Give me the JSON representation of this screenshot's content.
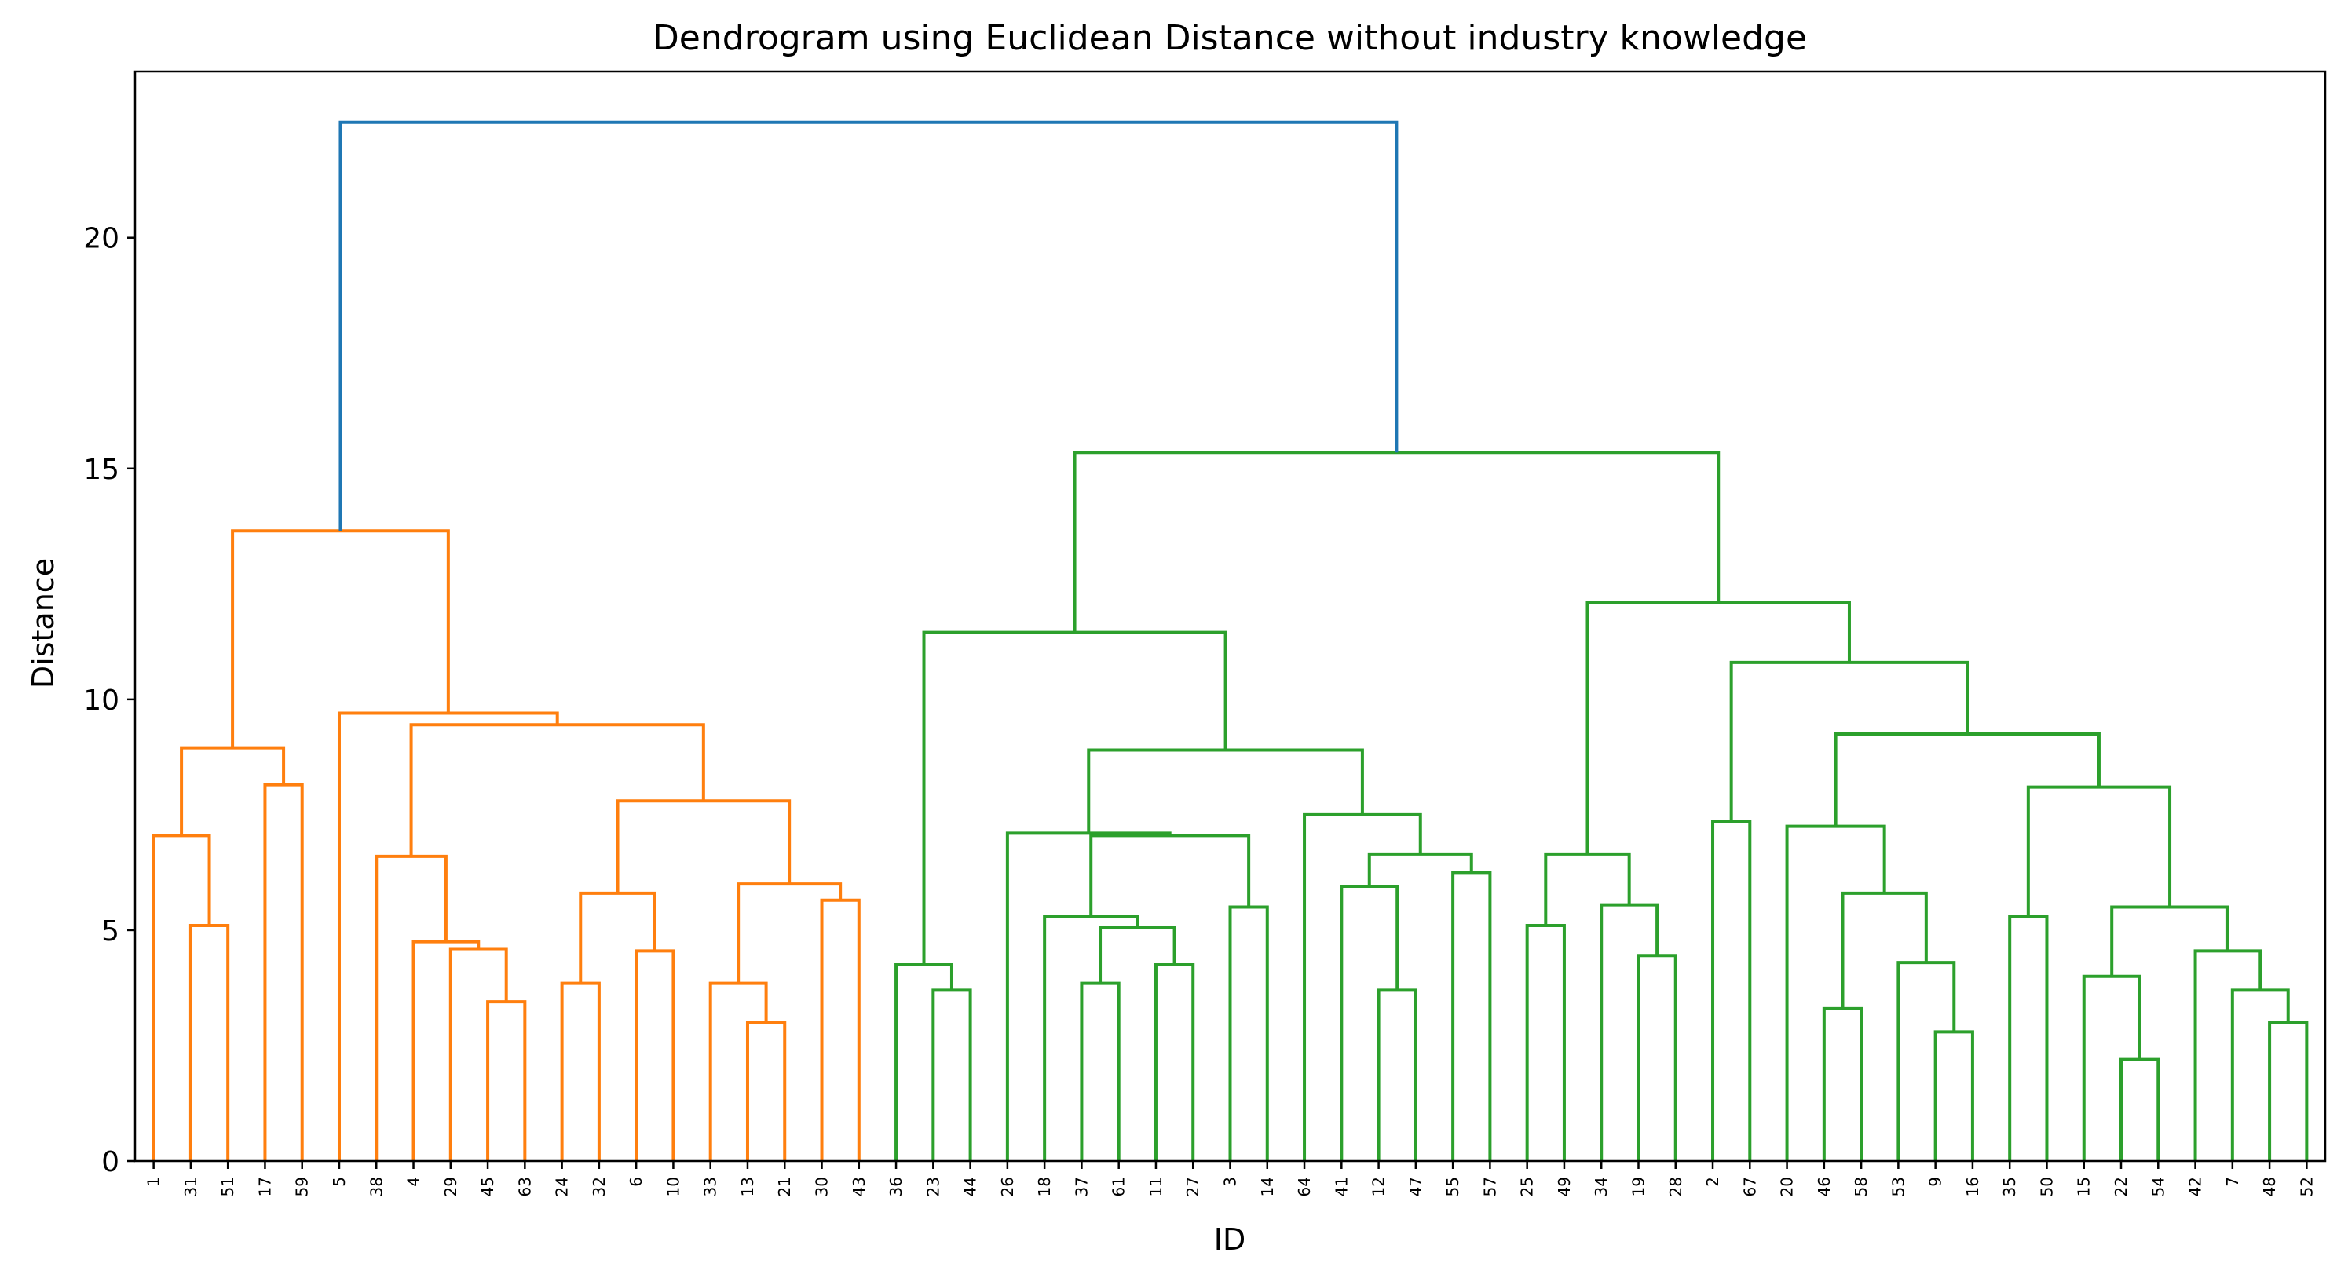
{
  "chart_data": {
    "type": "dendrogram",
    "title": "Dendrogram using Euclidean Distance without industry knowledge",
    "xlabel": "ID",
    "ylabel": "Distance",
    "ylim": [
      0,
      23.6
    ],
    "yticks": [
      0,
      5,
      10,
      15,
      20
    ],
    "grid": false,
    "leaves": [
      "1",
      "31",
      "51",
      "17",
      "59",
      "5",
      "38",
      "4",
      "29",
      "45",
      "63",
      "24",
      "32",
      "6",
      "10",
      "33",
      "13",
      "21",
      "30",
      "43",
      "36",
      "23",
      "44",
      "26",
      "18",
      "37",
      "61",
      "11",
      "27",
      "3",
      "14",
      "64",
      "41",
      "12",
      "47",
      "55",
      "57",
      "25",
      "49",
      "34",
      "19",
      "28",
      "2",
      "67",
      "20",
      "46",
      "58",
      "53",
      "9",
      "16",
      "35",
      "50",
      "15",
      "22",
      "54",
      "42",
      "7",
      "48",
      "52"
    ],
    "cluster_colors": {
      "orange": "#ff7f0e",
      "green": "#2ca02c",
      "link_above_threshold": "#1f77b4"
    },
    "merges": [
      {
        "a": "L:31",
        "b": "L:51",
        "height": 5.1,
        "color": "#ff7f0e"
      },
      {
        "a": "L:1",
        "b": "M:0",
        "height": 7.05,
        "color": "#ff7f0e"
      },
      {
        "a": "L:17",
        "b": "L:59",
        "height": 8.15,
        "color": "#ff7f0e"
      },
      {
        "a": "M:1",
        "b": "M:2",
        "height": 8.95,
        "color": "#ff7f0e"
      },
      {
        "a": "L:45",
        "b": "L:63",
        "height": 3.45,
        "color": "#ff7f0e"
      },
      {
        "a": "L:29",
        "b": "M:4",
        "height": 4.6,
        "color": "#ff7f0e"
      },
      {
        "a": "L:4",
        "b": "M:5",
        "height": 4.75,
        "color": "#ff7f0e"
      },
      {
        "a": "L:38",
        "b": "M:6",
        "height": 6.6,
        "color": "#ff7f0e"
      },
      {
        "a": "L:24",
        "b": "L:32",
        "height": 3.85,
        "color": "#ff7f0e"
      },
      {
        "a": "L:6",
        "b": "L:10",
        "height": 4.55,
        "color": "#ff7f0e"
      },
      {
        "a": "M:8",
        "b": "M:9",
        "height": 5.8,
        "color": "#ff7f0e"
      },
      {
        "a": "L:13",
        "b": "L:21",
        "height": 3.0,
        "color": "#ff7f0e"
      },
      {
        "a": "L:33",
        "b": "M:11",
        "height": 3.85,
        "color": "#ff7f0e"
      },
      {
        "a": "L:30",
        "b": "L:43",
        "height": 5.65,
        "color": "#ff7f0e"
      },
      {
        "a": "M:12",
        "b": "M:13",
        "height": 6.0,
        "color": "#ff7f0e"
      },
      {
        "a": "M:10",
        "b": "M:14",
        "height": 7.8,
        "color": "#ff7f0e"
      },
      {
        "a": "M:7",
        "b": "M:15",
        "height": 9.45,
        "color": "#ff7f0e"
      },
      {
        "a": "L:5",
        "b": "M:16",
        "height": 9.7,
        "color": "#ff7f0e"
      },
      {
        "a": "M:3",
        "b": "M:17",
        "height": 13.65,
        "color": "#ff7f0e"
      },
      {
        "a": "L:23",
        "b": "L:44",
        "height": 3.7,
        "color": "#2ca02c"
      },
      {
        "a": "L:36",
        "b": "M:19",
        "height": 4.25,
        "color": "#2ca02c"
      },
      {
        "a": "L:11",
        "b": "L:27",
        "height": 4.25,
        "color": "#2ca02c"
      },
      {
        "a": "L:37",
        "b": "L:61",
        "height": 3.85,
        "color": "#2ca02c"
      },
      {
        "a": "M:22",
        "b": "M:21",
        "height": 5.05,
        "color": "#2ca02c"
      },
      {
        "a": "L:18",
        "b": "M:23",
        "height": 5.3,
        "color": "#2ca02c"
      },
      {
        "a": "L:3",
        "b": "L:14",
        "height": 5.5,
        "color": "#2ca02c"
      },
      {
        "a": "M:24",
        "b": "M:25",
        "height": 7.05,
        "color": "#2ca02c"
      },
      {
        "a": "L:26",
        "b": "M:26",
        "height": 7.1,
        "color": "#2ca02c"
      },
      {
        "a": "L:12",
        "b": "L:47",
        "height": 3.7,
        "color": "#2ca02c"
      },
      {
        "a": "L:41",
        "b": "M:28",
        "height": 5.95,
        "color": "#2ca02c"
      },
      {
        "a": "L:55",
        "b": "L:57",
        "height": 6.25,
        "color": "#2ca02c"
      },
      {
        "a": "M:29",
        "b": "M:30",
        "height": 6.65,
        "color": "#2ca02c"
      },
      {
        "a": "L:64",
        "b": "M:31",
        "height": 7.5,
        "color": "#2ca02c"
      },
      {
        "a": "M:27",
        "b": "M:32",
        "height": 8.9,
        "color": "#2ca02c"
      },
      {
        "a": "M:20",
        "b": "M:33",
        "height": 11.45,
        "color": "#2ca02c"
      },
      {
        "a": "L:25",
        "b": "L:49",
        "height": 5.1,
        "color": "#2ca02c"
      },
      {
        "a": "L:19",
        "b": "L:28",
        "height": 4.45,
        "color": "#2ca02c"
      },
      {
        "a": "L:34",
        "b": "M:36",
        "height": 5.55,
        "color": "#2ca02c"
      },
      {
        "a": "M:35",
        "b": "M:37",
        "height": 6.65,
        "color": "#2ca02c"
      },
      {
        "a": "L:2",
        "b": "L:67",
        "height": 7.35,
        "color": "#2ca02c"
      },
      {
        "a": "L:46",
        "b": "L:58",
        "height": 3.3,
        "color": "#2ca02c"
      },
      {
        "a": "L:9",
        "b": "L:16",
        "height": 2.8,
        "color": "#2ca02c"
      },
      {
        "a": "L:53",
        "b": "M:41",
        "height": 4.3,
        "color": "#2ca02c"
      },
      {
        "a": "M:40",
        "b": "M:42",
        "height": 5.8,
        "color": "#2ca02c"
      },
      {
        "a": "L:20",
        "b": "M:43",
        "height": 7.25,
        "color": "#2ca02c"
      },
      {
        "a": "L:35",
        "b": "L:50",
        "height": 5.3,
        "color": "#2ca02c"
      },
      {
        "a": "L:22",
        "b": "L:54",
        "height": 2.2,
        "color": "#2ca02c"
      },
      {
        "a": "L:15",
        "b": "M:46",
        "height": 4.0,
        "color": "#2ca02c"
      },
      {
        "a": "L:48",
        "b": "L:52",
        "height": 3.0,
        "color": "#2ca02c"
      },
      {
        "a": "L:7",
        "b": "M:48",
        "height": 3.7,
        "color": "#2ca02c"
      },
      {
        "a": "L:42",
        "b": "M:49",
        "height": 4.55,
        "color": "#2ca02c"
      },
      {
        "a": "M:47",
        "b": "M:50",
        "height": 5.5,
        "color": "#2ca02c"
      },
      {
        "a": "M:45",
        "b": "M:51",
        "height": 8.1,
        "color": "#2ca02c"
      },
      {
        "a": "M:44",
        "b": "M:52",
        "height": 9.25,
        "color": "#2ca02c"
      },
      {
        "a": "M:39",
        "b": "M:53",
        "height": 10.8,
        "color": "#2ca02c"
      },
      {
        "a": "M:38",
        "b": "M:54",
        "height": 12.1,
        "color": "#2ca02c"
      },
      {
        "a": "M:34",
        "b": "M:55",
        "height": 15.35,
        "color": "#2ca02c"
      },
      {
        "a": "M:18",
        "b": "M:56",
        "height": 22.5,
        "color": "#1f77b4"
      }
    ]
  }
}
